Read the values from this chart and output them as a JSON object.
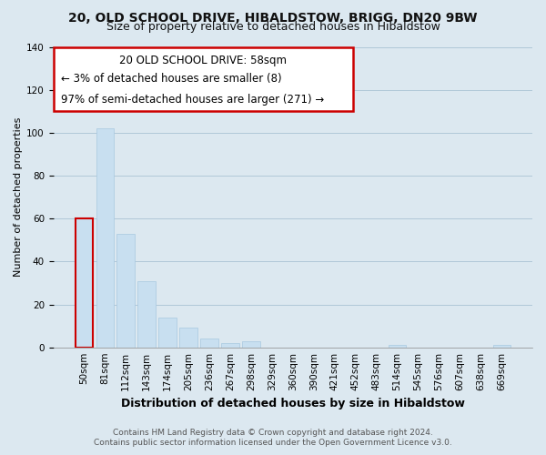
{
  "title": "20, OLD SCHOOL DRIVE, HIBALDSTOW, BRIGG, DN20 9BW",
  "subtitle": "Size of property relative to detached houses in Hibaldstow",
  "xlabel": "Distribution of detached houses by size in Hibaldstow",
  "ylabel": "Number of detached properties",
  "bar_color": "#c8dff0",
  "bar_edge_color": "#a8c8e0",
  "categories": [
    "50sqm",
    "81sqm",
    "112sqm",
    "143sqm",
    "174sqm",
    "205sqm",
    "236sqm",
    "267sqm",
    "298sqm",
    "329sqm",
    "360sqm",
    "390sqm",
    "421sqm",
    "452sqm",
    "483sqm",
    "514sqm",
    "545sqm",
    "576sqm",
    "607sqm",
    "638sqm",
    "669sqm"
  ],
  "values": [
    60,
    102,
    53,
    31,
    14,
    9,
    4,
    2,
    3,
    0,
    0,
    0,
    0,
    0,
    0,
    1,
    0,
    0,
    0,
    0,
    1
  ],
  "ylim": [
    0,
    140
  ],
  "yticks": [
    0,
    20,
    40,
    60,
    80,
    100,
    120,
    140
  ],
  "annotation_title": "20 OLD SCHOOL DRIVE: 58sqm",
  "annotation_line1": "← 3% of detached houses are smaller (8)",
  "annotation_line2": "97% of semi-detached houses are larger (271) →",
  "annotation_border_color": "#cc0000",
  "highlight_index": 0,
  "highlight_bar_outline": "#cc0000",
  "footer1": "Contains HM Land Registry data © Crown copyright and database right 2024.",
  "footer2": "Contains public sector information licensed under the Open Government Licence v3.0.",
  "background_color": "#dce8f0",
  "plot_bg_color": "#dce8f0",
  "grid_color": "#b0c8d8",
  "title_fontsize": 10,
  "subtitle_fontsize": 9,
  "xlabel_fontsize": 9,
  "ylabel_fontsize": 8,
  "tick_fontsize": 7.5,
  "annotation_fontsize": 8.5,
  "footer_fontsize": 6.5
}
